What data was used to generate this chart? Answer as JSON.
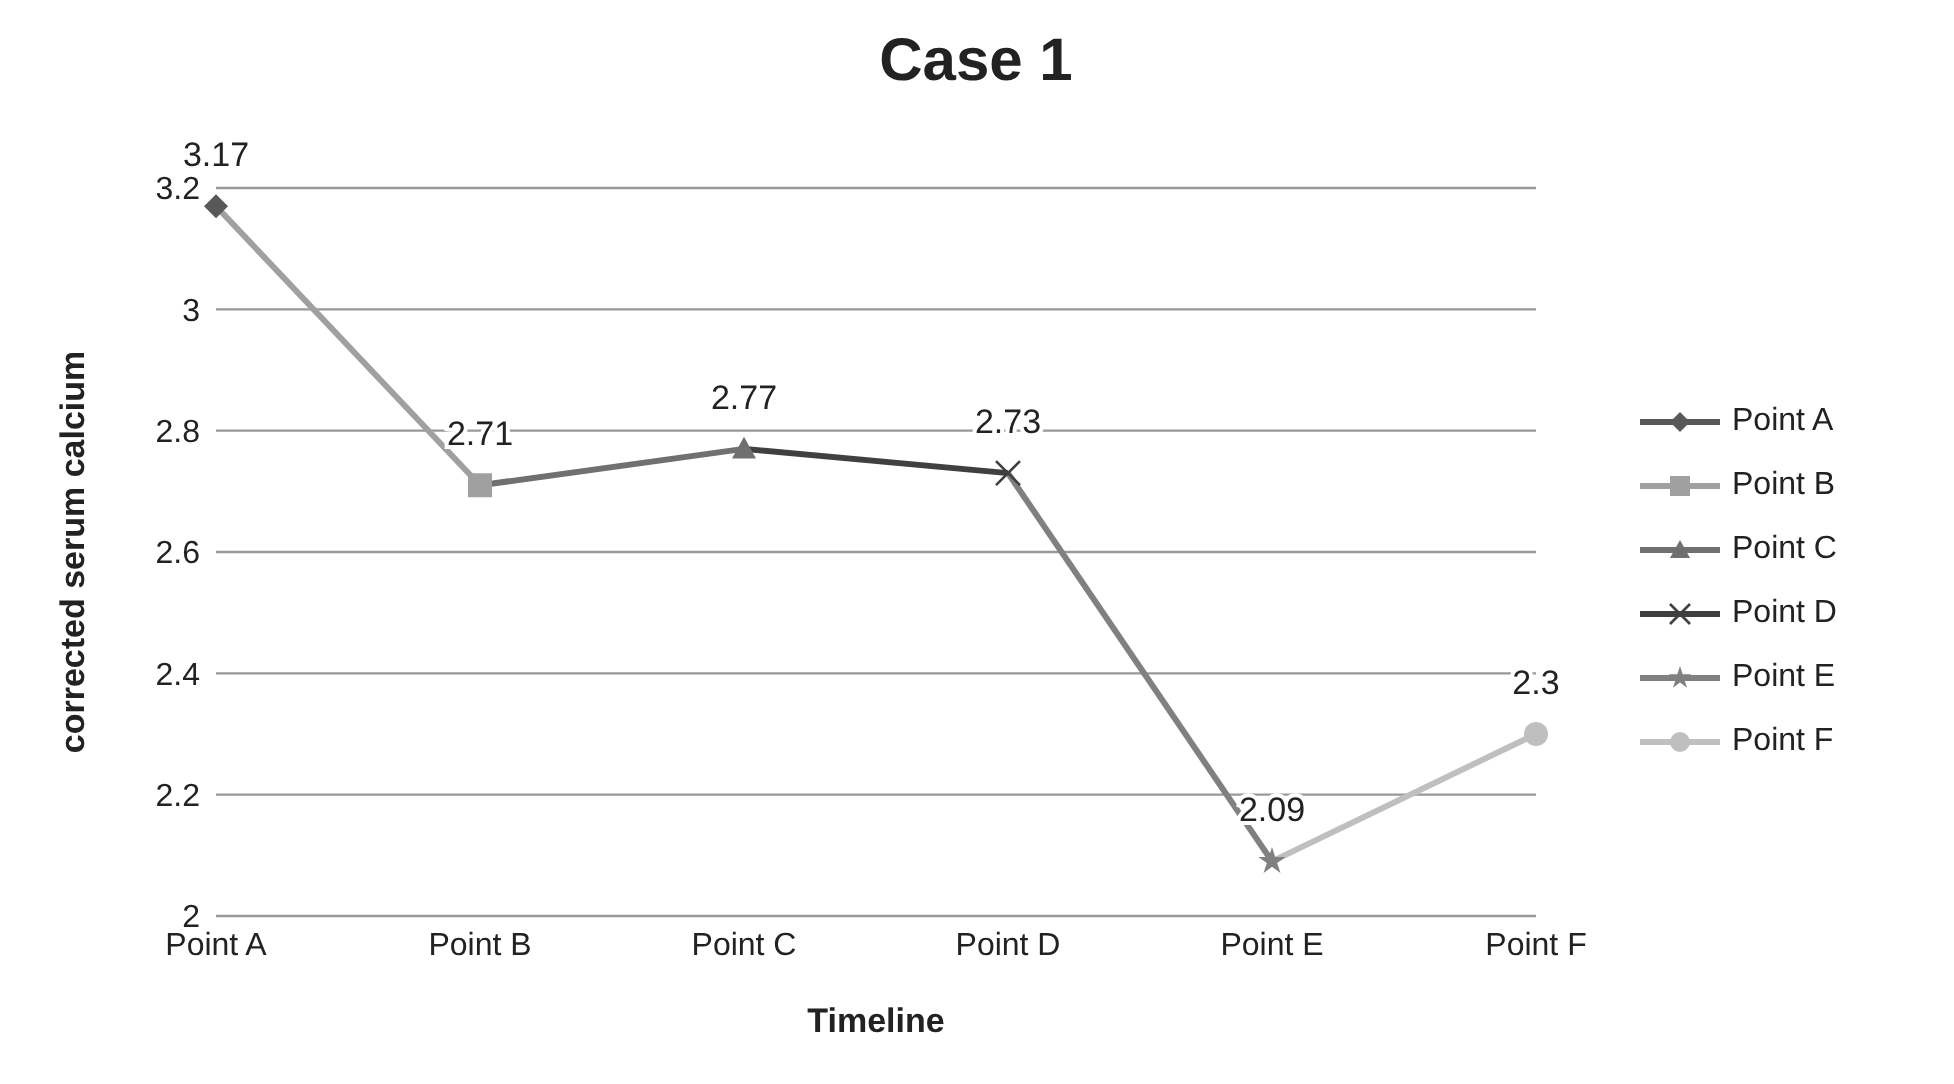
{
  "chart_data": {
    "type": "line",
    "title": "Case 1",
    "xlabel": "Timeline",
    "ylabel": "corrected serum calcium",
    "categories": [
      "Point A",
      "Point B",
      "Point C",
      "Point D",
      "Point E",
      "Point F"
    ],
    "series": [
      {
        "name": "Point A",
        "color": "#595959",
        "marker": "diamond",
        "values": [
          3.17,
          null,
          null,
          null,
          null,
          null
        ],
        "value_labels": [
          "3.17",
          null,
          null,
          null,
          null,
          null
        ]
      },
      {
        "name": "Point B",
        "color": "#a0a0a0",
        "marker": "square",
        "values": [
          3.17,
          2.71,
          null,
          null,
          null,
          null
        ],
        "value_labels": [
          null,
          "2.71",
          null,
          null,
          null,
          null
        ]
      },
      {
        "name": "Point C",
        "color": "#707070",
        "marker": "triangle",
        "values": [
          null,
          2.71,
          2.77,
          null,
          null,
          null
        ],
        "value_labels": [
          null,
          null,
          "2.77",
          null,
          null,
          null
        ]
      },
      {
        "name": "Point D",
        "color": "#404040",
        "marker": "cross",
        "values": [
          null,
          null,
          2.77,
          2.73,
          null,
          null
        ],
        "value_labels": [
          null,
          null,
          null,
          "2.73",
          null,
          null
        ]
      },
      {
        "name": "Point E",
        "color": "#808080",
        "marker": "star",
        "values": [
          null,
          null,
          null,
          2.73,
          2.09,
          null
        ],
        "value_labels": [
          null,
          null,
          null,
          null,
          "2.09",
          null
        ]
      },
      {
        "name": "Point F",
        "color": "#bfbfbf",
        "marker": "circle",
        "values": [
          null,
          null,
          null,
          null,
          2.09,
          2.3
        ],
        "value_labels": [
          null,
          null,
          null,
          null,
          null,
          "2.3"
        ]
      }
    ],
    "ylim": [
      2,
      3.2
    ],
    "yticks": [
      2,
      2.2,
      2.4,
      2.6,
      2.8,
      3,
      3.2
    ],
    "grid": "y",
    "legend": "right"
  }
}
